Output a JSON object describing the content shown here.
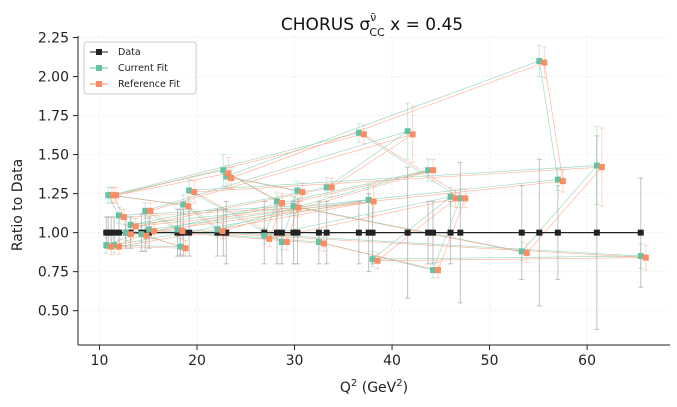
{
  "chart_data": {
    "type": "scatter",
    "title": "CHORUS σ",
    "title_sup": "ν̄",
    "title_sub": "CC",
    "title_suffix": " x = 0.45",
    "xlabel_base": "Q",
    "xlabel_sup": "2",
    "xlabel_paren": " (GeV",
    "xlabel_paren_sup": "2",
    "xlabel_end": ")",
    "ylabel": "Ratio to Data",
    "xlim": [
      7.8,
      68.5
    ],
    "ylim": [
      0.28,
      2.26
    ],
    "xticks": [
      10,
      20,
      30,
      40,
      50,
      60
    ],
    "yticks": [
      0.5,
      0.75,
      1.0,
      1.25,
      1.5,
      1.75,
      2.0,
      2.25
    ],
    "ytick_labels": [
      "0.50",
      "0.75",
      "1.00",
      "1.25",
      "1.50",
      "1.75",
      "2.00",
      "2.25"
    ],
    "legend_location": "top-left",
    "grid": true,
    "x": [
      10.7,
      15.1,
      32.5,
      44.2,
      47.0,
      36.6,
      11.2,
      22.7,
      28.2,
      26.9,
      46.0,
      38.0,
      65.5,
      18.0,
      14.7,
      41.6,
      33.3,
      13.2,
      57.0,
      55.1,
      23.0,
      30.3,
      28.7,
      19.2,
      61.0,
      53.3,
      29.9,
      12.0,
      10.9,
      18.6,
      22.1,
      43.7,
      14.3,
      18.3,
      11.5,
      37.6,
      12.7
    ],
    "series": [
      {
        "name": "Data",
        "color": "#222222",
        "values": [
          1,
          1,
          1,
          1,
          1,
          1,
          1,
          1,
          1,
          1,
          1,
          1,
          1,
          1,
          1,
          1,
          1,
          1,
          1,
          1,
          1,
          1,
          1,
          1,
          1,
          1,
          1,
          1,
          1,
          1,
          1,
          1,
          1,
          1,
          1,
          1,
          1
        ],
        "errors": [
          0.1,
          0.1,
          0.2,
          0.2,
          0.45,
          0.2,
          0.1,
          0.15,
          0.2,
          0.2,
          0.2,
          0.2,
          0.35,
          0.15,
          0.12,
          0.42,
          0.2,
          0.1,
          0.3,
          0.47,
          0.2,
          0.2,
          0.2,
          0.15,
          0.62,
          0.3,
          0.2,
          0.1,
          0.1,
          0.15,
          0.15,
          0.2,
          0.12,
          0.15,
          0.1,
          0.25,
          0.1
        ]
      },
      {
        "name": "Current Fit",
        "color": "#66c2a5",
        "values": [
          0.92,
          1.02,
          0.94,
          0.76,
          1.22,
          1.64,
          1.24,
          1.4,
          1.2,
          0.98,
          1.23,
          0.83,
          0.85,
          1.02,
          1.14,
          1.65,
          1.29,
          1.05,
          1.34,
          2.1,
          1.36,
          1.27,
          0.94,
          1.27,
          1.43,
          0.88,
          1.17,
          1.11,
          1.24,
          1.18,
          1.02,
          1.4,
          0.99,
          0.91,
          0.92,
          1.21,
          1.0
        ],
        "errors": [
          0.05,
          0.05,
          0.05,
          0.05,
          0.06,
          0.06,
          0.05,
          0.1,
          0.06,
          0.05,
          0.06,
          0.05,
          0.08,
          0.05,
          0.05,
          0.18,
          0.06,
          0.05,
          0.07,
          0.1,
          0.07,
          0.06,
          0.05,
          0.07,
          0.25,
          0.06,
          0.06,
          0.05,
          0.05,
          0.06,
          0.05,
          0.07,
          0.05,
          0.05,
          0.05,
          0.1,
          0.05
        ]
      },
      {
        "name": "Reference Fit",
        "color": "#fc8d62",
        "values": [
          0.91,
          1.01,
          0.93,
          0.76,
          1.22,
          1.63,
          1.24,
          1.38,
          1.19,
          0.96,
          1.22,
          0.82,
          0.84,
          1.01,
          1.14,
          1.63,
          1.29,
          1.04,
          1.33,
          2.09,
          1.35,
          1.26,
          0.94,
          1.26,
          1.42,
          0.87,
          1.16,
          1.1,
          1.24,
          1.17,
          1.01,
          1.4,
          0.98,
          0.9,
          0.91,
          1.2,
          0.99
        ],
        "errors": [
          0.05,
          0.05,
          0.05,
          0.05,
          0.06,
          0.06,
          0.05,
          0.1,
          0.06,
          0.05,
          0.06,
          0.05,
          0.08,
          0.05,
          0.05,
          0.18,
          0.06,
          0.05,
          0.07,
          0.1,
          0.07,
          0.06,
          0.05,
          0.07,
          0.25,
          0.06,
          0.06,
          0.05,
          0.05,
          0.06,
          0.05,
          0.07,
          0.05,
          0.05,
          0.05,
          0.1,
          0.05
        ]
      }
    ]
  }
}
